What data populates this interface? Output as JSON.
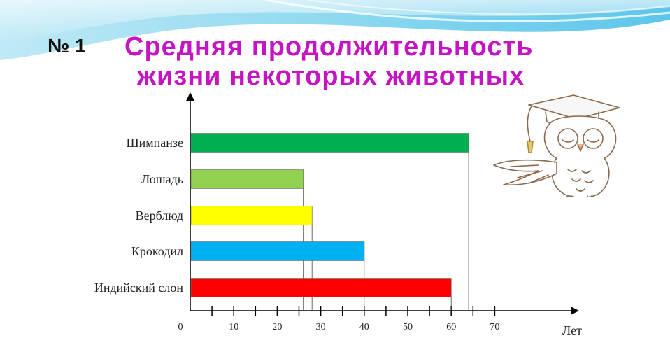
{
  "slide": {
    "number": "№ 1",
    "title_line_1": "Средняя продолжительность",
    "title_line_2": "жизни некоторых животных"
  },
  "colors": {
    "title": "#c414c4",
    "header_band": "#7fd3ee"
  },
  "chart_data": {
    "type": "bar",
    "orientation": "horizontal",
    "categories": [
      "Шимпанзе",
      "Лошадь",
      "Верблюд",
      "Крокодил",
      "Индийский слон"
    ],
    "values": [
      64,
      26,
      28,
      40,
      60
    ],
    "colors": [
      "#00b050",
      "#92d050",
      "#ffff00",
      "#00b0f0",
      "#ff0000"
    ],
    "xlabel": "Лет",
    "xlim": [
      0,
      70
    ],
    "xticks": [
      0,
      10,
      20,
      30,
      40,
      50,
      60,
      70
    ],
    "xtick_labels": [
      "0",
      "10",
      "20",
      "30",
      "40",
      "50",
      "60",
      "70"
    ]
  },
  "illustration": {
    "icon": "owl-with-graduation-cap-icon"
  }
}
